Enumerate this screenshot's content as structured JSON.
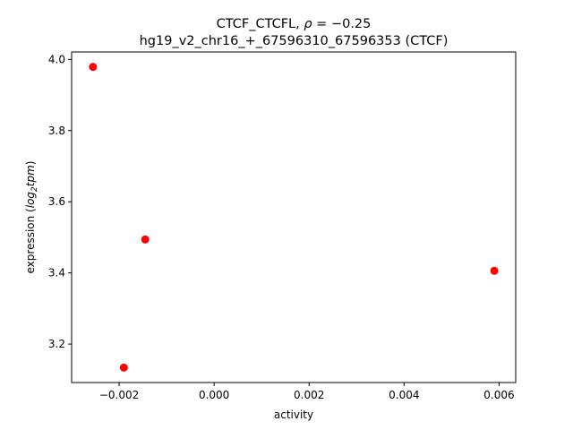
{
  "chart_data": {
    "type": "scatter",
    "title_line1_prefix": "CTCF_CTCFL, ",
    "title_rho_symbol": "ρ",
    "title_rho_value": " = −0.25",
    "title_line2": "hg19_v2_chr16_+_67596310_67596353 (CTCF)",
    "xlabel": "activity",
    "ylabel_prefix": "expression (",
    "ylabel_log": "log",
    "ylabel_sub": "2",
    "ylabel_tpm": "tpm",
    "ylabel_suffix": ")",
    "xlim": [
      -0.003,
      0.00635
    ],
    "ylim": [
      3.092,
      4.021
    ],
    "xticks": [
      {
        "value": -0.002,
        "label": "−0.002"
      },
      {
        "value": 0.0,
        "label": "0.000"
      },
      {
        "value": 0.002,
        "label": "0.002"
      },
      {
        "value": 0.004,
        "label": "0.004"
      },
      {
        "value": 0.006,
        "label": "0.006"
      }
    ],
    "yticks": [
      {
        "value": 3.2,
        "label": "3.2"
      },
      {
        "value": 3.4,
        "label": "3.4"
      },
      {
        "value": 3.6,
        "label": "3.6"
      },
      {
        "value": 3.8,
        "label": "3.8"
      },
      {
        "value": 4.0,
        "label": "4.0"
      }
    ],
    "grid": false,
    "marker_color": "#ff0000",
    "points": [
      {
        "x": -0.00255,
        "y": 3.979
      },
      {
        "x": -0.00145,
        "y": 3.494
      },
      {
        "x": -0.0019,
        "y": 3.134
      },
      {
        "x": 0.0059,
        "y": 3.406
      }
    ]
  }
}
